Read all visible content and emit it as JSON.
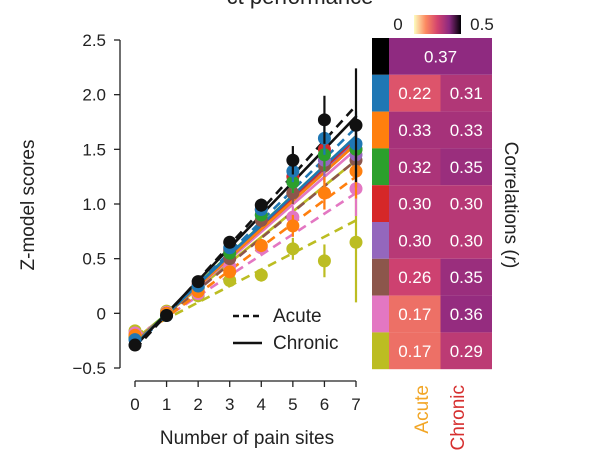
{
  "header": {
    "partial_title": "ct performance"
  },
  "chart_data": {
    "type": "scatter",
    "xlabel": "Number of pain sites",
    "ylabel": "Z-model scores",
    "x": [
      0,
      1,
      2,
      3,
      4,
      5,
      6,
      7
    ],
    "xlim": [
      0,
      7
    ],
    "ylim": [
      -0.5,
      2.5
    ],
    "yticks": [
      -0.5,
      0,
      0.5,
      1.0,
      1.5,
      2.0,
      2.5
    ],
    "ytick_labels": [
      "−0.5",
      "0",
      "0.5",
      "1.0",
      "1.5",
      "2.0",
      "2.5"
    ],
    "legend": {
      "placement": "bottom-right",
      "entries": [
        {
          "label": "Acute",
          "style": "dashed"
        },
        {
          "label": "Chronic",
          "style": "solid"
        }
      ]
    },
    "series": [
      {
        "color": "#111111",
        "values": [
          -0.29,
          -0.02,
          0.29,
          0.65,
          0.99,
          1.4,
          1.77,
          1.72
        ],
        "err": [
          0.02,
          0.02,
          0.03,
          0.05,
          0.06,
          0.13,
          0.22,
          0.52
        ]
      },
      {
        "color": "#1f77b4",
        "values": [
          -0.24,
          -0.02,
          0.25,
          0.6,
          0.95,
          1.3,
          1.6,
          1.55
        ],
        "err": [
          0.02,
          0.02,
          0.03,
          0.05,
          0.06,
          0.1,
          0.15,
          0.3
        ]
      },
      {
        "color": "#ff7f0e",
        "values": [
          -0.2,
          0.0,
          0.2,
          0.38,
          0.62,
          0.8,
          1.1,
          1.3
        ],
        "err": [
          0.02,
          0.02,
          0.03,
          0.05,
          0.06,
          0.1,
          0.15,
          0.25
        ]
      },
      {
        "color": "#2ca02c",
        "values": [
          -0.22,
          0.0,
          0.24,
          0.55,
          0.9,
          1.2,
          1.45,
          1.5
        ],
        "err": [
          0.02,
          0.02,
          0.03,
          0.05,
          0.06,
          0.1,
          0.15,
          0.25
        ]
      },
      {
        "color": "#d62728",
        "values": [
          -0.23,
          -0.01,
          0.26,
          0.58,
          0.95,
          1.25,
          1.5,
          1.5
        ],
        "err": [
          0.02,
          0.02,
          0.03,
          0.05,
          0.06,
          0.1,
          0.15,
          0.25
        ]
      },
      {
        "color": "#9467bd",
        "values": [
          -0.21,
          0.0,
          0.23,
          0.56,
          0.9,
          1.2,
          1.4,
          1.45
        ],
        "err": [
          0.02,
          0.02,
          0.03,
          0.05,
          0.06,
          0.1,
          0.15,
          0.25
        ]
      },
      {
        "color": "#8c564b",
        "values": [
          -0.22,
          0.0,
          0.24,
          0.5,
          0.85,
          1.1,
          1.35,
          1.4
        ],
        "err": [
          0.02,
          0.02,
          0.03,
          0.05,
          0.06,
          0.1,
          0.15,
          0.25
        ]
      },
      {
        "color": "#e377c2",
        "values": [
          -0.18,
          0.01,
          0.18,
          0.43,
          0.6,
          0.88,
          1.1,
          1.14
        ],
        "err": [
          0.02,
          0.02,
          0.03,
          0.05,
          0.06,
          0.1,
          0.15,
          0.25
        ]
      },
      {
        "color": "#bcbd22",
        "values": [
          -0.16,
          0.02,
          0.16,
          0.3,
          0.35,
          0.59,
          0.48,
          0.65
        ],
        "err": [
          0.02,
          0.02,
          0.03,
          0.05,
          0.06,
          0.1,
          0.15,
          0.55
        ]
      }
    ],
    "fits": [
      {
        "color": "#111111",
        "acute": [
          -0.33,
          1.9
        ],
        "chronic": [
          -0.3,
          1.8
        ]
      },
      {
        "color": "#1f77b4",
        "acute": [
          -0.3,
          1.7
        ],
        "chronic": [
          -0.28,
          1.62
        ]
      },
      {
        "color": "#ff7f0e",
        "acute": [
          -0.25,
          1.25
        ],
        "chronic": [
          -0.27,
          1.55
        ]
      },
      {
        "color": "#2ca02c",
        "acute": [
          -0.27,
          1.55
        ],
        "chronic": [
          -0.27,
          1.62
        ]
      },
      {
        "color": "#d62728",
        "acute": [
          -0.28,
          1.6
        ],
        "chronic": [
          -0.28,
          1.6
        ]
      },
      {
        "color": "#9467bd",
        "acute": [
          -0.27,
          1.58
        ],
        "chronic": [
          -0.27,
          1.58
        ]
      },
      {
        "color": "#8c564b",
        "acute": [
          -0.26,
          1.4
        ],
        "chronic": [
          -0.27,
          1.55
        ]
      },
      {
        "color": "#e377c2",
        "acute": [
          -0.22,
          1.1
        ],
        "chronic": [
          -0.26,
          1.5
        ]
      },
      {
        "color": "#bcbd22",
        "acute": [
          -0.2,
          0.85
        ],
        "chronic": [
          -0.24,
          1.4
        ]
      }
    ],
    "heatmap": {
      "columns": [
        {
          "label": "Acute",
          "color": "#f2a626"
        },
        {
          "label": "Chronic",
          "color": "#d62f2f"
        }
      ],
      "right_label_main": "Correlations (",
      "right_label_r": "r",
      "right_label_end": ")",
      "colorbar": {
        "min": 0,
        "max": 0.5,
        "min_label": "0",
        "max_label": "0.5"
      },
      "rows": [
        {
          "color": "#000000",
          "merged": true,
          "values": [
            0.37
          ],
          "labels": [
            "0.37"
          ]
        },
        {
          "color": "#1f77b4",
          "merged": false,
          "values": [
            0.22,
            0.31
          ],
          "labels": [
            "0.22",
            "0.31"
          ]
        },
        {
          "color": "#ff7f0e",
          "merged": false,
          "values": [
            0.33,
            0.33
          ],
          "labels": [
            "0.33",
            "0.33"
          ]
        },
        {
          "color": "#2ca02c",
          "merged": false,
          "values": [
            0.32,
            0.35
          ],
          "labels": [
            "0.32",
            "0.35"
          ]
        },
        {
          "color": "#d62728",
          "merged": false,
          "values": [
            0.3,
            0.3
          ],
          "labels": [
            "0.30",
            "0.30"
          ]
        },
        {
          "color": "#9467bd",
          "merged": false,
          "values": [
            0.3,
            0.3
          ],
          "labels": [
            "0.30",
            "0.30"
          ]
        },
        {
          "color": "#8c564b",
          "merged": false,
          "values": [
            0.26,
            0.35
          ],
          "labels": [
            "0.26",
            "0.35"
          ]
        },
        {
          "color": "#e377c2",
          "merged": false,
          "values": [
            0.17,
            0.36
          ],
          "labels": [
            "0.17",
            "0.36"
          ]
        },
        {
          "color": "#bcbd22",
          "merged": false,
          "values": [
            0.17,
            0.29
          ],
          "labels": [
            "0.17",
            "0.29"
          ]
        }
      ]
    }
  }
}
